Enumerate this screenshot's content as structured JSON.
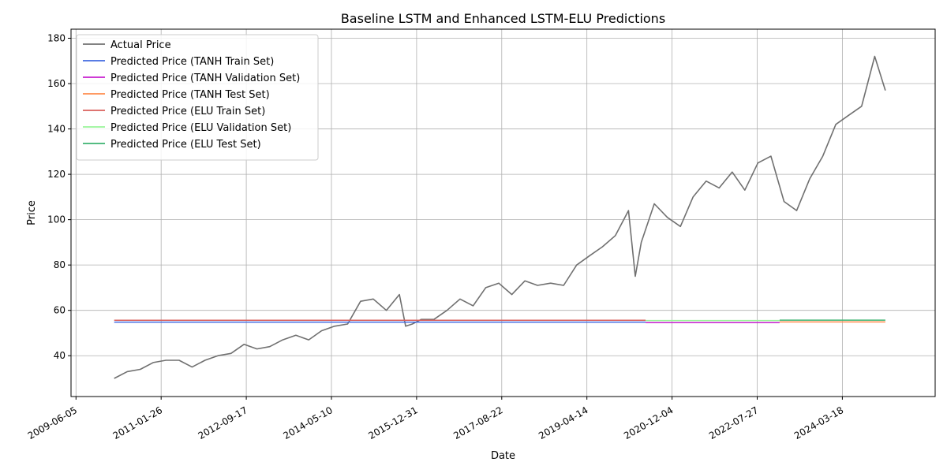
{
  "chart_data": {
    "type": "line",
    "title": "Baseline LSTM and Enhanced LSTM-ELU Predictions",
    "xlabel": "Date",
    "ylabel": "Price",
    "xlim": [
      "2009-05-01",
      "2026-01-01"
    ],
    "ylim": [
      22,
      184
    ],
    "grid": true,
    "legend_position": "top-left",
    "x_ticks": [
      "2009-06-05",
      "2011-01-26",
      "2012-09-17",
      "2014-05-10",
      "2015-12-31",
      "2017-08-22",
      "2019-04-14",
      "2020-12-04",
      "2022-07-27",
      "2024-03-18"
    ],
    "y_ticks": [
      40,
      60,
      80,
      100,
      120,
      140,
      160,
      180
    ],
    "series": [
      {
        "name": "Actual Price",
        "color": "#707070",
        "x": [
          "2010-03-01",
          "2010-06-01",
          "2010-09-01",
          "2010-12-01",
          "2011-03-01",
          "2011-06-01",
          "2011-09-01",
          "2011-12-01",
          "2012-03-01",
          "2012-06-01",
          "2012-09-01",
          "2012-12-01",
          "2013-03-01",
          "2013-06-01",
          "2013-09-01",
          "2013-12-01",
          "2014-03-01",
          "2014-06-01",
          "2014-09-01",
          "2014-12-01",
          "2015-03-01",
          "2015-06-01",
          "2015-09-01",
          "2015-10-15",
          "2015-12-01",
          "2016-02-01",
          "2016-05-01",
          "2016-08-01",
          "2016-11-01",
          "2017-02-01",
          "2017-05-01",
          "2017-08-01",
          "2017-11-01",
          "2018-02-01",
          "2018-05-01",
          "2018-08-01",
          "2018-11-01",
          "2019-02-01",
          "2019-05-01",
          "2019-08-01",
          "2019-11-01",
          "2020-02-01",
          "2020-03-20",
          "2020-05-01",
          "2020-08-01",
          "2020-11-01",
          "2021-02-01",
          "2021-05-01",
          "2021-08-01",
          "2021-11-01",
          "2022-02-01",
          "2022-05-01",
          "2022-08-01",
          "2022-11-01",
          "2023-02-01",
          "2023-05-01",
          "2023-08-01",
          "2023-11-01",
          "2024-02-01",
          "2024-05-01",
          "2024-08-01",
          "2024-11-01",
          "2025-01-15"
        ],
        "values": [
          30,
          33,
          34,
          37,
          38,
          38,
          35,
          38,
          40,
          41,
          45,
          43,
          44,
          47,
          49,
          47,
          51,
          53,
          54,
          64,
          65,
          60,
          67,
          53,
          54,
          56,
          56,
          60,
          65,
          62,
          70,
          72,
          67,
          73,
          71,
          72,
          71,
          80,
          84,
          88,
          93,
          104,
          75,
          90,
          107,
          101,
          97,
          110,
          117,
          114,
          121,
          113,
          125,
          128,
          108,
          104,
          118,
          128,
          142,
          146,
          150,
          172,
          157
        ]
      },
      {
        "name": "Predicted Price (TANH Train Set)",
        "color": "#4169e1",
        "x": [
          "2010-03-01",
          "2020-06-01"
        ],
        "values": [
          54.8,
          54.8
        ]
      },
      {
        "name": "Predicted Price (TANH Validation Set)",
        "color": "#c71fcf",
        "x": [
          "2020-06-01",
          "2023-01-01"
        ],
        "values": [
          54.6,
          54.6
        ]
      },
      {
        "name": "Predicted Price (TANH Test Set)",
        "color": "#ff8c4d",
        "x": [
          "2023-01-01",
          "2025-01-15"
        ],
        "values": [
          54.9,
          54.9
        ]
      },
      {
        "name": "Predicted Price (ELU Train Set)",
        "color": "#d9605c",
        "x": [
          "2010-03-01",
          "2020-06-01"
        ],
        "values": [
          55.6,
          55.6
        ]
      },
      {
        "name": "Predicted Price (ELU Validation Set)",
        "color": "#98f598",
        "x": [
          "2020-06-01",
          "2023-01-01"
        ],
        "values": [
          55.5,
          55.5
        ]
      },
      {
        "name": "Predicted Price (ELU Test Set)",
        "color": "#3cb371",
        "x": [
          "2023-01-01",
          "2025-01-15"
        ],
        "values": [
          55.7,
          55.7
        ]
      }
    ]
  }
}
